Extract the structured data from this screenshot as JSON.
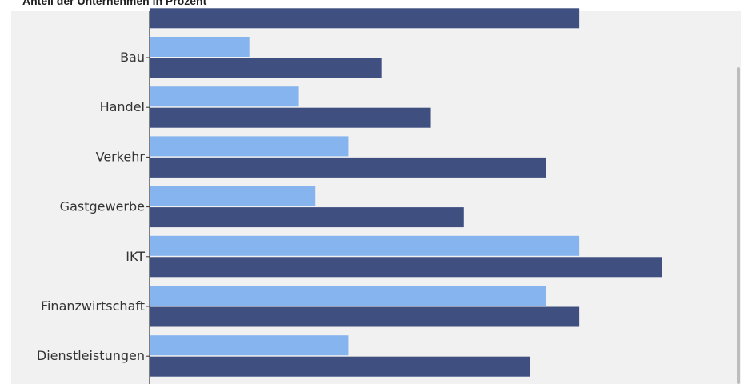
{
  "header": {
    "title": "Anteil der Unternehmen in Prozent"
  },
  "colors": {
    "series_light": "#86b4ee",
    "series_dark": "#3e4f80",
    "axis": "#333333",
    "panel_background": "#f1f1f1"
  },
  "chart_data": {
    "type": "bar",
    "orientation": "horizontal",
    "title": "Anteil der Unternehmen in Prozent",
    "xlabel": "",
    "ylabel": "",
    "xlim": [
      0,
      62
    ],
    "grid": false,
    "categories": [
      "",
      "Bau",
      "Handel",
      "Verkehr",
      "Gastgewerbe",
      "IKT",
      "Finanzwirtschaft",
      "Dienstleistungen"
    ],
    "series": [
      {
        "color": "#86b4ee",
        "values": [
          null,
          12,
          18,
          24,
          20,
          52,
          48,
          24
        ]
      },
      {
        "color": "#3e4f80",
        "values": [
          52,
          28,
          34,
          48,
          38,
          62,
          52,
          46
        ]
      }
    ]
  }
}
